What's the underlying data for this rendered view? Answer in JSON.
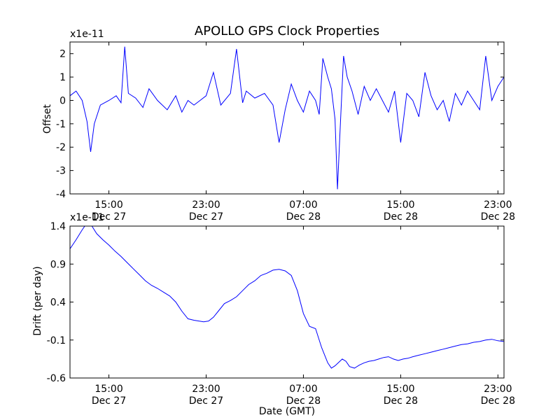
{
  "title": "APOLLO GPS Clock Properties",
  "chart_data": [
    {
      "type": "line",
      "title": "APOLLO GPS Clock Properties",
      "ylabel": "Offset",
      "scale_note": "x1e-11",
      "xlabel": "",
      "xticks": [
        {
          "line1": "15:00",
          "line2": "Dec 27"
        },
        {
          "line1": "23:00",
          "line2": "Dec 27"
        },
        {
          "line1": "07:00",
          "line2": "Dec 28"
        },
        {
          "line1": "15:00",
          "line2": "Dec 28"
        },
        {
          "line1": "23:00",
          "line2": "Dec 28"
        }
      ],
      "xtick_hours": [
        15,
        23,
        31,
        39,
        47
      ],
      "xlim_hours": [
        11.8,
        47.5
      ],
      "yticks": [
        "2",
        "1",
        "0",
        "-1",
        "-2",
        "-3",
        "-4"
      ],
      "ytick_values": [
        2,
        1,
        0,
        -1,
        -2,
        -3,
        -4
      ],
      "ylim": [
        -4,
        2.5
      ],
      "color": "#0000ff",
      "grid": false,
      "series": [
        {
          "x": [
            11.8,
            12.3,
            12.8,
            13.2,
            13.5,
            13.8,
            14.3,
            15.0,
            15.6,
            16.0,
            16.3,
            16.6,
            17.2,
            17.8,
            18.3,
            19.0,
            19.8,
            20.5,
            21.0,
            21.5,
            22.0,
            22.5,
            23.0,
            23.6,
            24.2,
            25.0,
            25.5,
            26.0,
            26.3,
            27.0,
            27.8,
            28.5,
            29.0,
            29.5,
            30.0,
            30.5,
            31.0,
            31.5,
            32.0,
            32.3,
            32.6,
            33.0,
            33.3,
            33.6,
            33.8,
            34.0,
            34.3,
            34.6,
            35.0,
            35.5,
            36.0,
            36.5,
            37.0,
            37.5,
            38.0,
            38.5,
            39.0,
            39.5,
            40.0,
            40.5,
            41.0,
            41.5,
            42.0,
            42.5,
            43.0,
            43.5,
            44.0,
            44.5,
            45.0,
            45.5,
            46.0,
            46.5,
            47.0,
            47.5
          ],
          "values": [
            0.2,
            0.4,
            0.0,
            -0.9,
            -2.2,
            -1.0,
            -0.2,
            0.0,
            0.2,
            -0.1,
            2.3,
            0.3,
            0.1,
            -0.3,
            0.5,
            0.0,
            -0.4,
            0.2,
            -0.5,
            0.0,
            -0.2,
            0.0,
            0.2,
            1.2,
            -0.2,
            0.3,
            2.2,
            -0.1,
            0.4,
            0.1,
            0.3,
            -0.2,
            -1.8,
            -0.4,
            0.7,
            0.0,
            -0.5,
            0.4,
            0.0,
            -0.6,
            1.8,
            1.0,
            0.5,
            -0.8,
            -3.8,
            -1.5,
            1.9,
            1.0,
            0.4,
            -0.6,
            0.6,
            0.0,
            0.5,
            0.0,
            -0.5,
            0.4,
            -1.8,
            0.3,
            0.0,
            -0.7,
            1.2,
            0.2,
            -0.4,
            0.0,
            -0.9,
            0.3,
            -0.2,
            0.4,
            0.0,
            -0.4,
            1.9,
            0.0,
            0.6,
            1.0
          ]
        }
      ]
    },
    {
      "type": "line",
      "title": "",
      "ylabel": "Drift (per day)",
      "scale_note": "x1e-11",
      "xlabel": "Date (GMT)",
      "xticks": [
        {
          "line1": "15:00",
          "line2": "Dec 27"
        },
        {
          "line1": "23:00",
          "line2": "Dec 27"
        },
        {
          "line1": "07:00",
          "line2": "Dec 28"
        },
        {
          "line1": "15:00",
          "line2": "Dec 28"
        },
        {
          "line1": "23:00",
          "line2": "Dec 28"
        }
      ],
      "xtick_hours": [
        15,
        23,
        31,
        39,
        47
      ],
      "xlim_hours": [
        11.8,
        47.5
      ],
      "yticks": [
        "1.4",
        "0.9",
        "0.4",
        "-0.1",
        "-0.6"
      ],
      "ytick_values": [
        1.4,
        0.9,
        0.4,
        -0.1,
        -0.6
      ],
      "ylim": [
        -0.6,
        1.4
      ],
      "color": "#0000ff",
      "grid": false,
      "series": [
        {
          "x": [
            11.8,
            12.3,
            12.8,
            13.1,
            13.3,
            13.6,
            14.0,
            14.5,
            15.0,
            15.5,
            16.0,
            16.5,
            17.0,
            17.5,
            18.0,
            18.5,
            19.0,
            19.5,
            20.0,
            20.5,
            21.0,
            21.5,
            22.0,
            22.4,
            22.8,
            23.2,
            23.6,
            24.0,
            24.5,
            25.0,
            25.5,
            26.0,
            26.5,
            27.0,
            27.5,
            28.0,
            28.5,
            29.0,
            29.5,
            30.0,
            30.5,
            31.0,
            31.5,
            32.0,
            32.5,
            33.0,
            33.3,
            33.6,
            34.0,
            34.2,
            34.5,
            34.8,
            35.2,
            35.6,
            36.0,
            36.4,
            36.8,
            37.2,
            37.6,
            38.0,
            38.4,
            38.8,
            39.2,
            39.6,
            40.0,
            40.5,
            41.0,
            41.5,
            42.0,
            42.5,
            43.0,
            43.5,
            44.0,
            44.5,
            45.0,
            45.5,
            46.0,
            46.5,
            47.0,
            47.5
          ],
          "values": [
            1.1,
            1.22,
            1.35,
            1.42,
            1.43,
            1.4,
            1.3,
            1.22,
            1.15,
            1.07,
            1.0,
            0.92,
            0.84,
            0.76,
            0.68,
            0.62,
            0.58,
            0.53,
            0.48,
            0.4,
            0.28,
            0.18,
            0.16,
            0.15,
            0.14,
            0.15,
            0.2,
            0.28,
            0.38,
            0.42,
            0.47,
            0.55,
            0.63,
            0.68,
            0.75,
            0.78,
            0.82,
            0.83,
            0.81,
            0.75,
            0.55,
            0.25,
            0.08,
            0.05,
            -0.2,
            -0.4,
            -0.47,
            -0.44,
            -0.38,
            -0.35,
            -0.38,
            -0.45,
            -0.47,
            -0.43,
            -0.4,
            -0.38,
            -0.37,
            -0.35,
            -0.33,
            -0.32,
            -0.35,
            -0.37,
            -0.35,
            -0.34,
            -0.32,
            -0.3,
            -0.28,
            -0.26,
            -0.24,
            -0.22,
            -0.2,
            -0.18,
            -0.16,
            -0.15,
            -0.13,
            -0.12,
            -0.1,
            -0.09,
            -0.11,
            -0.12
          ]
        }
      ]
    }
  ]
}
